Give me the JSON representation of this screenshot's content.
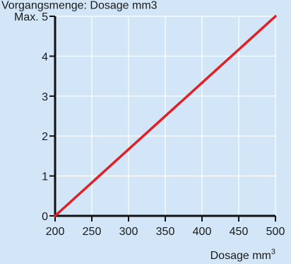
{
  "chart_data": {
    "type": "line",
    "title": "Vorgangsmenge: Dosage mm3",
    "xlabel": "Dosage mm",
    "xlabel_superscript": "3",
    "ylabel": "",
    "x_ticks": [
      "200",
      "250",
      "300",
      "350",
      "400",
      "450",
      "500"
    ],
    "y_ticks": [
      "0",
      "1",
      "2",
      "3",
      "4",
      "Max. 5"
    ],
    "xlim": [
      200,
      500
    ],
    "ylim": [
      0,
      5
    ],
    "grid": true,
    "series": [
      {
        "x": [
          200,
          500
        ],
        "y": [
          0,
          5
        ],
        "color": "#e02027"
      }
    ],
    "colors": {
      "background": "#d2e6f7",
      "grid": "#ffffff",
      "axis": "#111111"
    }
  }
}
